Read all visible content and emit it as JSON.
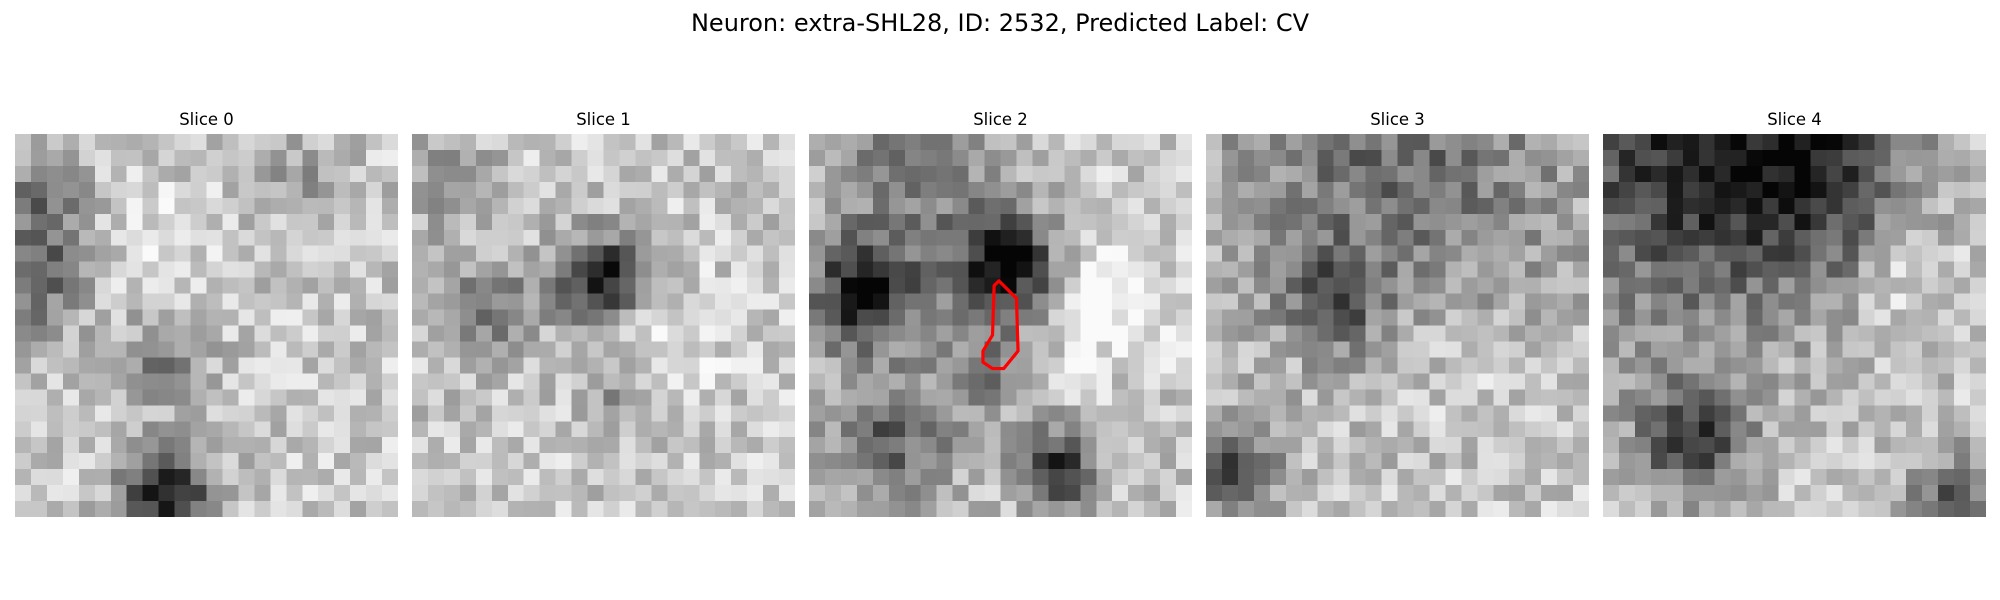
{
  "figure": {
    "title": "Neuron: extra-SHL28, ID: 2532, Predicted Label: CV"
  },
  "panels": [
    {
      "title": "Slice 0",
      "icon": "grayscale-noise-image",
      "has_contour": false
    },
    {
      "title": "Slice 1",
      "icon": "grayscale-noise-image",
      "has_contour": false
    },
    {
      "title": "Slice 2",
      "icon": "grayscale-noise-image",
      "has_contour": true
    },
    {
      "title": "Slice 3",
      "icon": "grayscale-noise-image",
      "has_contour": false
    },
    {
      "title": "Slice 4",
      "icon": "grayscale-noise-image",
      "has_contour": false
    }
  ],
  "colors": {
    "contour": "#ff0000",
    "background": "#ffffff"
  }
}
